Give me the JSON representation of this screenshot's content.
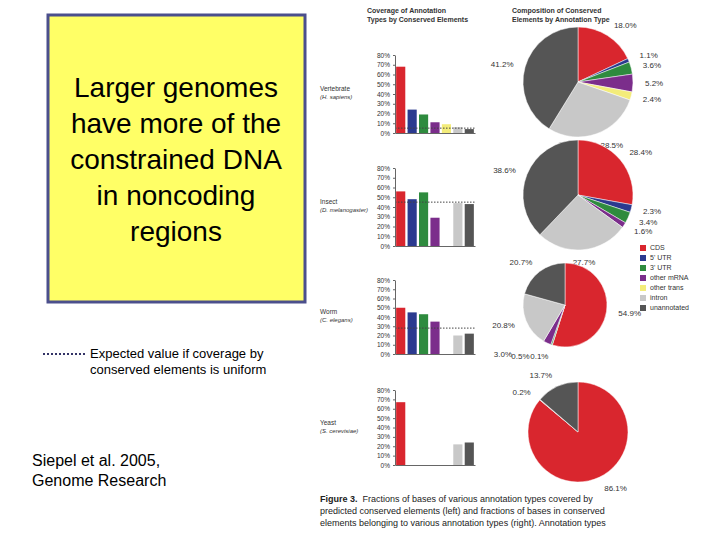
{
  "slide": {
    "title": [
      "Larger genomes",
      "have more of the",
      "constrained DNA",
      "in noncoding",
      "regions"
    ],
    "expected_note": [
      "Expected value if coverage by",
      "conserved elements is uniform"
    ],
    "citation": [
      "Siepel et al. 2005,",
      "Genome Research"
    ]
  },
  "figure": {
    "left_header": [
      "Coverage of Annotation",
      "Types by Conserved Elements"
    ],
    "right_header": [
      "Composition of Conserved",
      "Elements by Annotation Type"
    ],
    "caption_label": "Figure 3.",
    "caption": [
      "Fractions of bases of various annotation types covered by",
      "predicted conserved elements (left) and fractions of bases in conserved",
      "elements belonging to various annotation types (right). Annotation types"
    ]
  },
  "annotation_types": {
    "names": [
      "CDS",
      "5' UTR",
      "3' UTR",
      "other mRNA",
      "other trans",
      "intron",
      "unannotated"
    ],
    "colors": [
      "#d9262e",
      "#2b3a8f",
      "#2e8b3e",
      "#7b2d8b",
      "#f3ec7a",
      "#c8c8c8",
      "#555555"
    ]
  },
  "chart_data": [
    {
      "type": "bar",
      "title": "Vertebrate",
      "subtitle": "(H. sapiens)",
      "categories": [
        null,
        null,
        null,
        null,
        null,
        null,
        null
      ],
      "values": [
        68,
        24,
        19,
        11,
        9,
        6,
        4
      ],
      "colors": [
        "#d9262e",
        "#2b3a8f",
        "#2e8b3e",
        "#7b2d8b",
        "#f3ec7a",
        "#c8c8c8",
        "#555555"
      ],
      "expected": 5,
      "ylim": [
        0,
        80
      ],
      "yticks": [
        {
          "value": 0,
          "label": "0%"
        },
        {
          "value": 10,
          "label": "10%"
        },
        {
          "value": 20,
          "label": "20%"
        },
        {
          "value": 30,
          "label": "30%"
        },
        {
          "value": 40,
          "label": "40%"
        },
        {
          "value": 50,
          "label": "50%"
        },
        {
          "value": 60,
          "label": "60%"
        },
        {
          "value": 70,
          "label": "70%"
        },
        {
          "value": 80,
          "label": "80%"
        }
      ],
      "tick_labels": "y"
    },
    {
      "type": "bar",
      "title": "Insect",
      "subtitle": "(D. melanogaster)",
      "categories": [
        null,
        null,
        null,
        null,
        null,
        null,
        null
      ],
      "values": [
        56,
        48,
        55,
        29,
        null,
        44,
        43
      ],
      "colors": [
        "#d9262e",
        "#2b3a8f",
        "#2e8b3e",
        "#7b2d8b",
        "#f3ec7a",
        "#c8c8c8",
        "#555555"
      ],
      "expected": 45,
      "ylim": [
        0,
        80
      ],
      "yticks": [
        {
          "value": 0,
          "label": "0%"
        },
        {
          "value": 10,
          "label": "10%"
        },
        {
          "value": 20,
          "label": "20%"
        },
        {
          "value": 30,
          "label": "30%"
        },
        {
          "value": 40,
          "label": "40%"
        },
        {
          "value": 50,
          "label": "50%"
        },
        {
          "value": 60,
          "label": "60%"
        },
        {
          "value": 70,
          "label": "70%"
        },
        {
          "value": 80,
          "label": "80%"
        }
      ],
      "tick_labels": "y"
    },
    {
      "type": "bar",
      "title": "Worm",
      "subtitle": "(C. elegans)",
      "categories": [
        null,
        null,
        null,
        null,
        null,
        null,
        null
      ],
      "values": [
        50,
        45,
        43,
        35,
        null,
        20,
        22
      ],
      "colors": [
        "#d9262e",
        "#2b3a8f",
        "#2e8b3e",
        "#7b2d8b",
        "#f3ec7a",
        "#c8c8c8",
        "#555555"
      ],
      "expected": 28,
      "ylim": [
        0,
        80
      ],
      "yticks": [
        {
          "value": 0,
          "label": "0%"
        },
        {
          "value": 10,
          "label": "10%"
        },
        {
          "value": 20,
          "label": "20%"
        },
        {
          "value": 30,
          "label": "30%"
        },
        {
          "value": 40,
          "label": "40%"
        },
        {
          "value": 50,
          "label": "50%"
        },
        {
          "value": 60,
          "label": "60%"
        },
        {
          "value": 70,
          "label": "70%"
        },
        {
          "value": 80,
          "label": "80%"
        }
      ],
      "tick_labels": "y"
    },
    {
      "type": "bar",
      "title": "Yeast",
      "subtitle": "(S. cerevisiae)",
      "categories": [
        null,
        null,
        null,
        null,
        null,
        null,
        null
      ],
      "values": [
        67,
        null,
        null,
        null,
        null,
        22,
        24
      ],
      "colors": [
        "#d9262e",
        "#2b3a8f",
        "#2e8b3e",
        "#7b2d8b",
        "#f3ec7a",
        "#c8c8c8",
        "#555555"
      ],
      "ylim": [
        0,
        80
      ],
      "yticks": [
        {
          "value": 0,
          "label": "0%"
        },
        {
          "value": 10,
          "label": "10%"
        },
        {
          "value": 20,
          "label": "20%"
        },
        {
          "value": 30,
          "label": "30%"
        },
        {
          "value": 40,
          "label": "40%"
        },
        {
          "value": 50,
          "label": "50%"
        },
        {
          "value": 60,
          "label": "60%"
        },
        {
          "value": 70,
          "label": "70%"
        },
        {
          "value": 80,
          "label": "80%"
        }
      ],
      "tick_labels": "y"
    },
    {
      "type": "pie",
      "values": [
        18.0,
        1.1,
        3.6,
        5.2,
        2.4,
        28.5,
        41.2
      ],
      "value_labels": [
        "18.0%",
        "1.1%",
        "3.6%",
        "5.2%",
        "2.4%",
        "28.5%",
        "41.2%"
      ],
      "colors": [
        "#d9262e",
        "#2b3a8f",
        "#2e8b3e",
        "#7b2d8b",
        "#f3ec7a",
        "#c8c8c8",
        "#555555"
      ],
      "data_labels": true
    },
    {
      "type": "pie",
      "values": [
        28.4,
        2.3,
        3.4,
        1.6,
        27.7,
        38.6
      ],
      "value_labels": [
        "28.4%",
        "2.3%",
        "3.4%",
        "1.6%",
        "27.7%",
        "38.6%"
      ],
      "colors": [
        "#d9262e",
        "#2b3a8f",
        "#2e8b3e",
        "#7b2d8b",
        "#c8c8c8",
        "#555555"
      ],
      "data_labels": true
    },
    {
      "type": "pie",
      "values": [
        54.9,
        0.1,
        0.5,
        3.0,
        20.8,
        20.7
      ],
      "value_labels": [
        "54.9%",
        "0.1%",
        "0.5%",
        "3.0%",
        "20.8%",
        "20.7%"
      ],
      "colors": [
        "#d9262e",
        "#2b3a8f",
        "#2e8b3e",
        "#7b2d8b",
        "#c8c8c8",
        "#555555"
      ],
      "data_labels": true
    },
    {
      "type": "pie",
      "values": [
        86.1,
        0.2,
        13.7
      ],
      "value_labels": [
        "86.1%",
        "0.2%",
        "13.7%"
      ],
      "colors": [
        "#d9262e",
        "#c8c8c8",
        "#555555"
      ],
      "data_labels": true
    }
  ]
}
